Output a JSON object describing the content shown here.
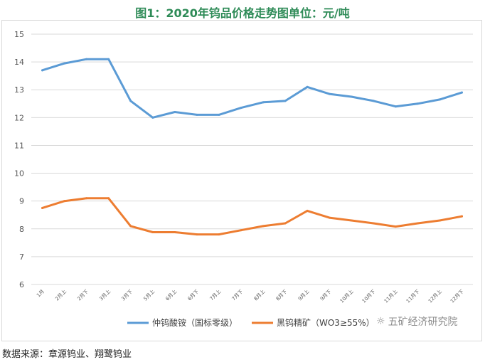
{
  "title": "图1：2020年钨品价格走势图单位：元/吨",
  "source": "数据来源：章源钨业、翔鹭钨业",
  "watermark": "五矿经济研究院",
  "watermark_icon": "wechat-icon",
  "chart_data": {
    "type": "line",
    "title": "图1：2020年钨品价格走势图单位：元/吨",
    "xlabel": "",
    "ylabel": "",
    "ylim": [
      6,
      15
    ],
    "yticks": [
      6,
      7,
      8,
      9,
      10,
      11,
      12,
      13,
      14,
      15
    ],
    "grid": true,
    "legend_position": "bottom",
    "categories": [
      "1月",
      "2月上",
      "2月下",
      "3月上",
      "3月下",
      "5月上",
      "6月上",
      "6月下",
      "7月上",
      "7月下",
      "8月上",
      "8月下",
      "9月上",
      "9月下",
      "10月上",
      "10月下",
      "11月上",
      "11月下",
      "12月上",
      "12月下"
    ],
    "series": [
      {
        "name": "仲钨酸铵（国标零级）",
        "color": "#5b9bd5",
        "values": [
          13.7,
          13.95,
          14.1,
          14.1,
          12.6,
          12.0,
          12.2,
          12.1,
          12.1,
          12.35,
          12.55,
          12.6,
          13.1,
          12.85,
          12.75,
          12.6,
          12.4,
          12.5,
          12.65,
          12.9
        ]
      },
      {
        "name": "黑钨精矿（WO3≥55%）",
        "color": "#ed7d31",
        "values": [
          8.75,
          9.0,
          9.1,
          9.1,
          8.1,
          7.88,
          7.88,
          7.8,
          7.8,
          7.95,
          8.1,
          8.2,
          8.65,
          8.4,
          8.3,
          8.2,
          8.08,
          8.2,
          8.3,
          8.45
        ]
      }
    ]
  }
}
